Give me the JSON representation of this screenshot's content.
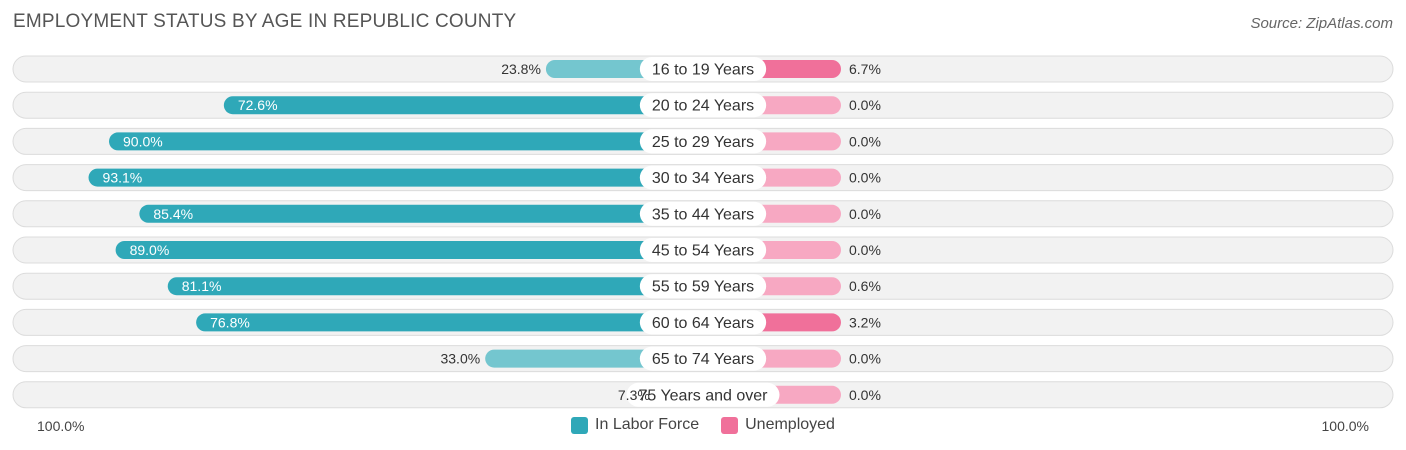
{
  "header": {
    "title": "EMPLOYMENT STATUS BY AGE IN REPUBLIC COUNTY",
    "source": "Source: ZipAtlas.com"
  },
  "colors": {
    "labor_force_dark": "#2fa8b8",
    "labor_force_light": "#74c6cf",
    "unemployed_dark": "#f0709a",
    "unemployed_light": "#f7a8c2"
  },
  "chart_data": {
    "type": "bar",
    "orientation": "horizontal-diverging",
    "categories": [
      "16 to 19 Years",
      "20 to 24 Years",
      "25 to 29 Years",
      "30 to 34 Years",
      "35 to 44 Years",
      "45 to 54 Years",
      "55 to 59 Years",
      "60 to 64 Years",
      "65 to 74 Years",
      "75 Years and over"
    ],
    "series": [
      {
        "name": "In Labor Force",
        "values": [
          23.8,
          72.6,
          90.0,
          93.1,
          85.4,
          89.0,
          81.1,
          76.8,
          33.0,
          7.3
        ],
        "labels": [
          "23.8%",
          "72.6%",
          "90.0%",
          "93.1%",
          "85.4%",
          "89.0%",
          "81.1%",
          "76.8%",
          "33.0%",
          "7.3%"
        ]
      },
      {
        "name": "Unemployed",
        "values": [
          6.7,
          0.0,
          0.0,
          0.0,
          0.0,
          0.0,
          0.6,
          3.2,
          0.0,
          0.0
        ],
        "labels": [
          "6.7%",
          "0.0%",
          "0.0%",
          "0.0%",
          "0.0%",
          "0.0%",
          "0.6%",
          "3.2%",
          "0.0%",
          "0.0%"
        ]
      }
    ],
    "xlim": [
      -100,
      100
    ],
    "axis_left_label": "100.0%",
    "axis_right_label": "100.0%",
    "legend_position": "bottom-center"
  }
}
